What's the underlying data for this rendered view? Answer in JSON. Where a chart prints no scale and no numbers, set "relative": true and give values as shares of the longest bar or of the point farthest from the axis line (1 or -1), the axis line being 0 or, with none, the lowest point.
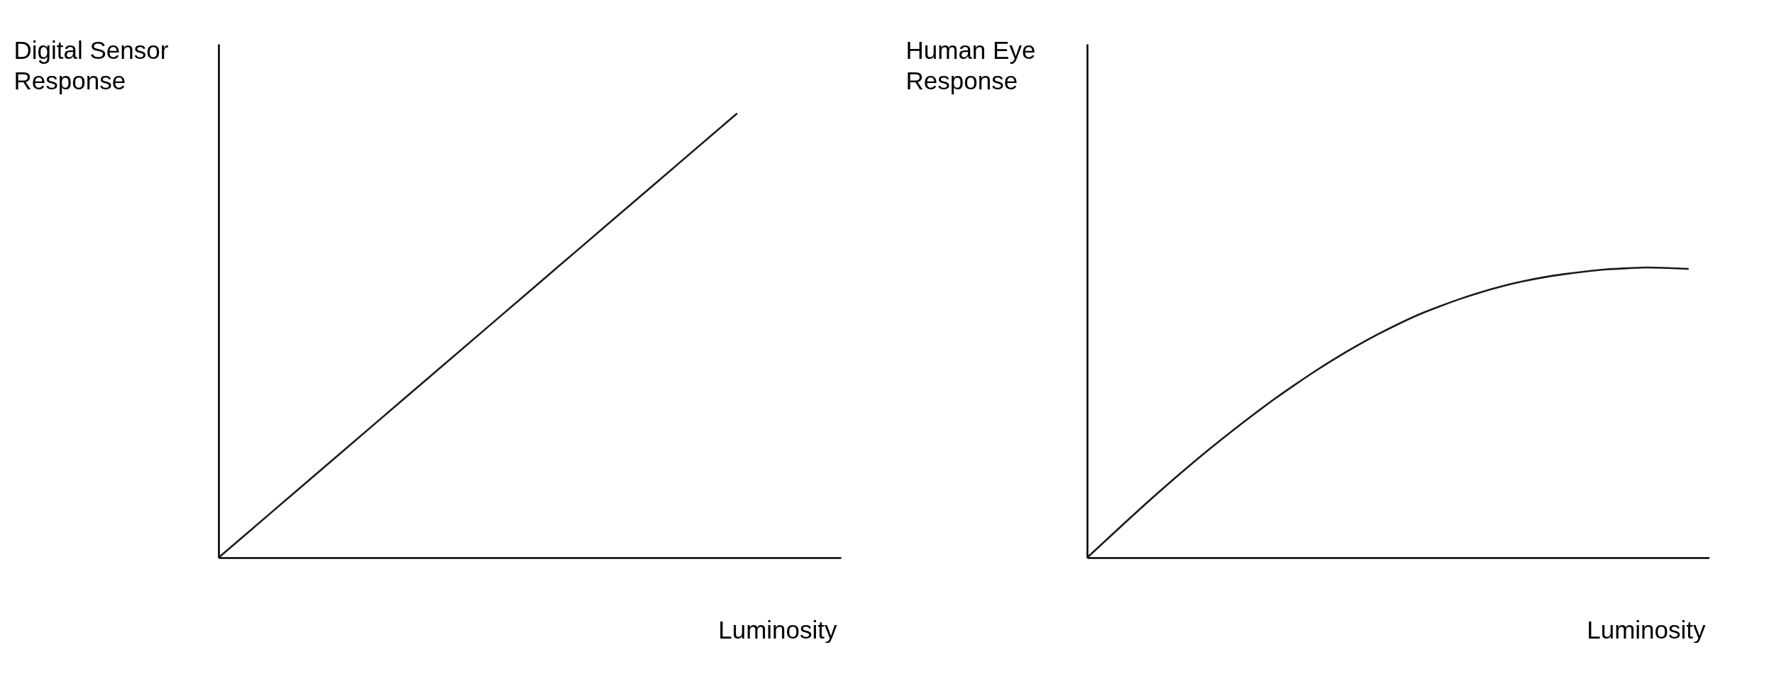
{
  "chart_data": [
    {
      "type": "line",
      "relative": true,
      "ylabel": "Digital Sensor\nResponse",
      "xlabel": "Luminosity",
      "categories": [
        null,
        null,
        null,
        null,
        null,
        null,
        null,
        null,
        null,
        null,
        null,
        null,
        null
      ],
      "series": [
        {
          "color": "#1a1a1a",
          "values": [
            0,
            0.1,
            0.2,
            0.3,
            0.4,
            0.5,
            0.6,
            0.7,
            0.8,
            0.9,
            1.0,
            null,
            null
          ]
        }
      ]
    },
    {
      "type": "line",
      "relative": true,
      "ylabel": "Human Eye\nResponse",
      "xlabel": "Luminosity",
      "categories": [
        null,
        null,
        null,
        null,
        null,
        null,
        null,
        null,
        null,
        null,
        null,
        null,
        null,
        null,
        null,
        null,
        null,
        null,
        null,
        null,
        null,
        null,
        null,
        null,
        null,
        null,
        null,
        null,
        null,
        null,
        null
      ],
      "series": [
        {
          "color": "#1a1a1a",
          "values": [
            0,
            0.066,
            0.132,
            0.197,
            0.26,
            0.321,
            0.38,
            0.437,
            0.492,
            0.545,
            0.595,
            0.643,
            0.688,
            0.73,
            0.769,
            0.805,
            0.838,
            0.866,
            0.892,
            0.915,
            0.935,
            0.952,
            0.966,
            0.977,
            0.986,
            0.993,
            0.997,
            1.0,
            0.998,
            0.995,
            null
          ]
        }
      ]
    }
  ]
}
